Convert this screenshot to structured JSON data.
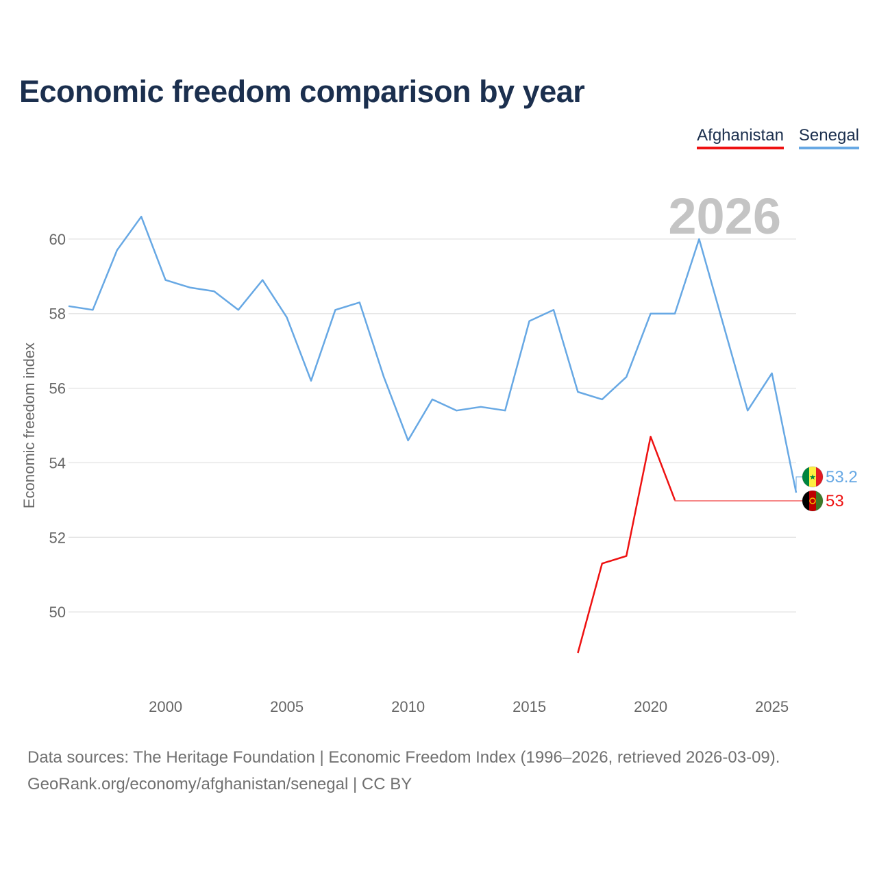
{
  "title": "Economic freedom comparison by year",
  "footer": {
    "sources": "Data sources: The Heritage Foundation | Economic Freedom Index (1996–2026, retrieved 2026-03-09).",
    "credit": "GeoRank.org/economy/afghanistan/senegal | CC BY"
  },
  "colors": {
    "title": "#1b2f4e",
    "afghanistan": "#ee1111",
    "senegal": "#67a8e4",
    "grid": "#e6e6e6",
    "axis_text": "#666666",
    "year_watermark": "#c4c4c4"
  },
  "chart_data": {
    "type": "line",
    "title": "Economic freedom comparison by year",
    "ylabel": "Economic freedom index",
    "xlabel": "",
    "year_label": "2026",
    "xlim": [
      1996,
      2026
    ],
    "ylim": [
      48,
      62
    ],
    "x_ticks": [
      2000,
      2005,
      2010,
      2015,
      2020,
      2025
    ],
    "y_ticks": [
      50,
      52,
      54,
      56,
      58,
      60
    ],
    "grid": true,
    "legend_position": "top-right",
    "series": [
      {
        "name": "Afghanistan",
        "key": "afghanistan",
        "flag": "afghanistan-flag-icon",
        "end_label": "53",
        "x": [
          2017,
          2018,
          2019,
          2020,
          2021
        ],
        "values": [
          48.9,
          51.3,
          51.5,
          54.7,
          53.0
        ]
      },
      {
        "name": "Senegal",
        "key": "senegal",
        "flag": "senegal-flag-icon",
        "end_label": "53.2",
        "x": [
          1996,
          1997,
          1998,
          1999,
          2000,
          2001,
          2002,
          2003,
          2004,
          2005,
          2006,
          2007,
          2008,
          2009,
          2010,
          2011,
          2012,
          2013,
          2014,
          2015,
          2016,
          2017,
          2018,
          2019,
          2020,
          2021,
          2022,
          2023,
          2024,
          2025,
          2026
        ],
        "values": [
          58.2,
          58.1,
          59.7,
          60.6,
          58.9,
          58.7,
          58.6,
          58.1,
          58.9,
          57.9,
          56.2,
          58.1,
          58.3,
          56.3,
          54.6,
          55.7,
          55.4,
          55.5,
          55.4,
          57.8,
          58.1,
          55.9,
          55.7,
          56.3,
          58.0,
          58.0,
          60.0,
          57.7,
          55.4,
          56.4,
          53.2
        ]
      }
    ]
  }
}
